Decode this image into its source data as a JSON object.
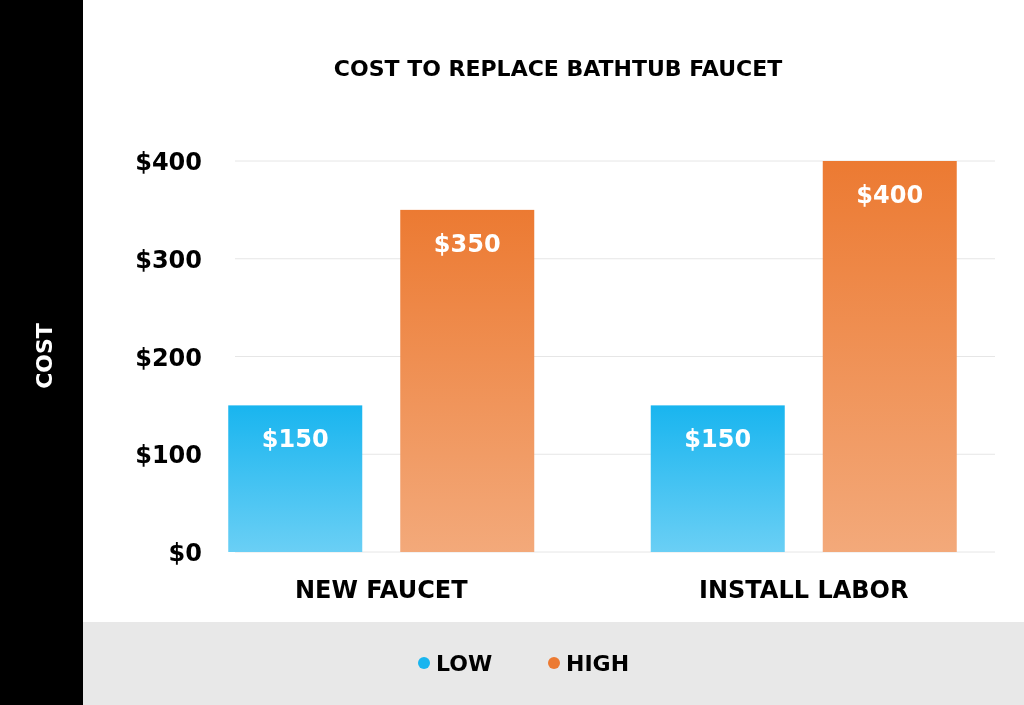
{
  "chart_data": {
    "type": "bar",
    "title": "COST TO REPLACE BATHTUB FAUCET",
    "ylabel": "COST",
    "categories": [
      "NEW FAUCET",
      "INSTALL LABOR"
    ],
    "series": [
      {
        "name": "LOW",
        "color": "#19b5ef",
        "values": [
          150,
          150
        ],
        "value_labels": [
          "$150",
          "$150"
        ]
      },
      {
        "name": "HIGH",
        "color": "#ec7a32",
        "values": [
          350,
          400
        ],
        "value_labels": [
          "$350",
          "$400"
        ]
      }
    ],
    "ylim": [
      0,
      400
    ],
    "yticks": [
      {
        "value": 0,
        "label": "$0"
      },
      {
        "value": 100,
        "label": "$100"
      },
      {
        "value": 200,
        "label": "$200"
      },
      {
        "value": 300,
        "label": "$300"
      },
      {
        "value": 400,
        "label": "$400"
      }
    ],
    "grid": "y",
    "legend": "bottom"
  }
}
